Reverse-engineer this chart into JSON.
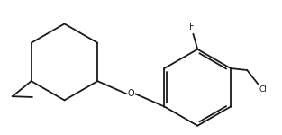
{
  "background": "#ffffff",
  "bond_color": "#1a1a1a",
  "label_color_F": "#1a1a1a",
  "label_color_O": "#1a1a1a",
  "label_color_Cl": "#1a1a1a",
  "label_F": "F",
  "label_O": "O",
  "label_Cl": "Cl",
  "line_width": 1.3,
  "figsize": [
    3.13,
    1.5
  ],
  "dpi": 100
}
